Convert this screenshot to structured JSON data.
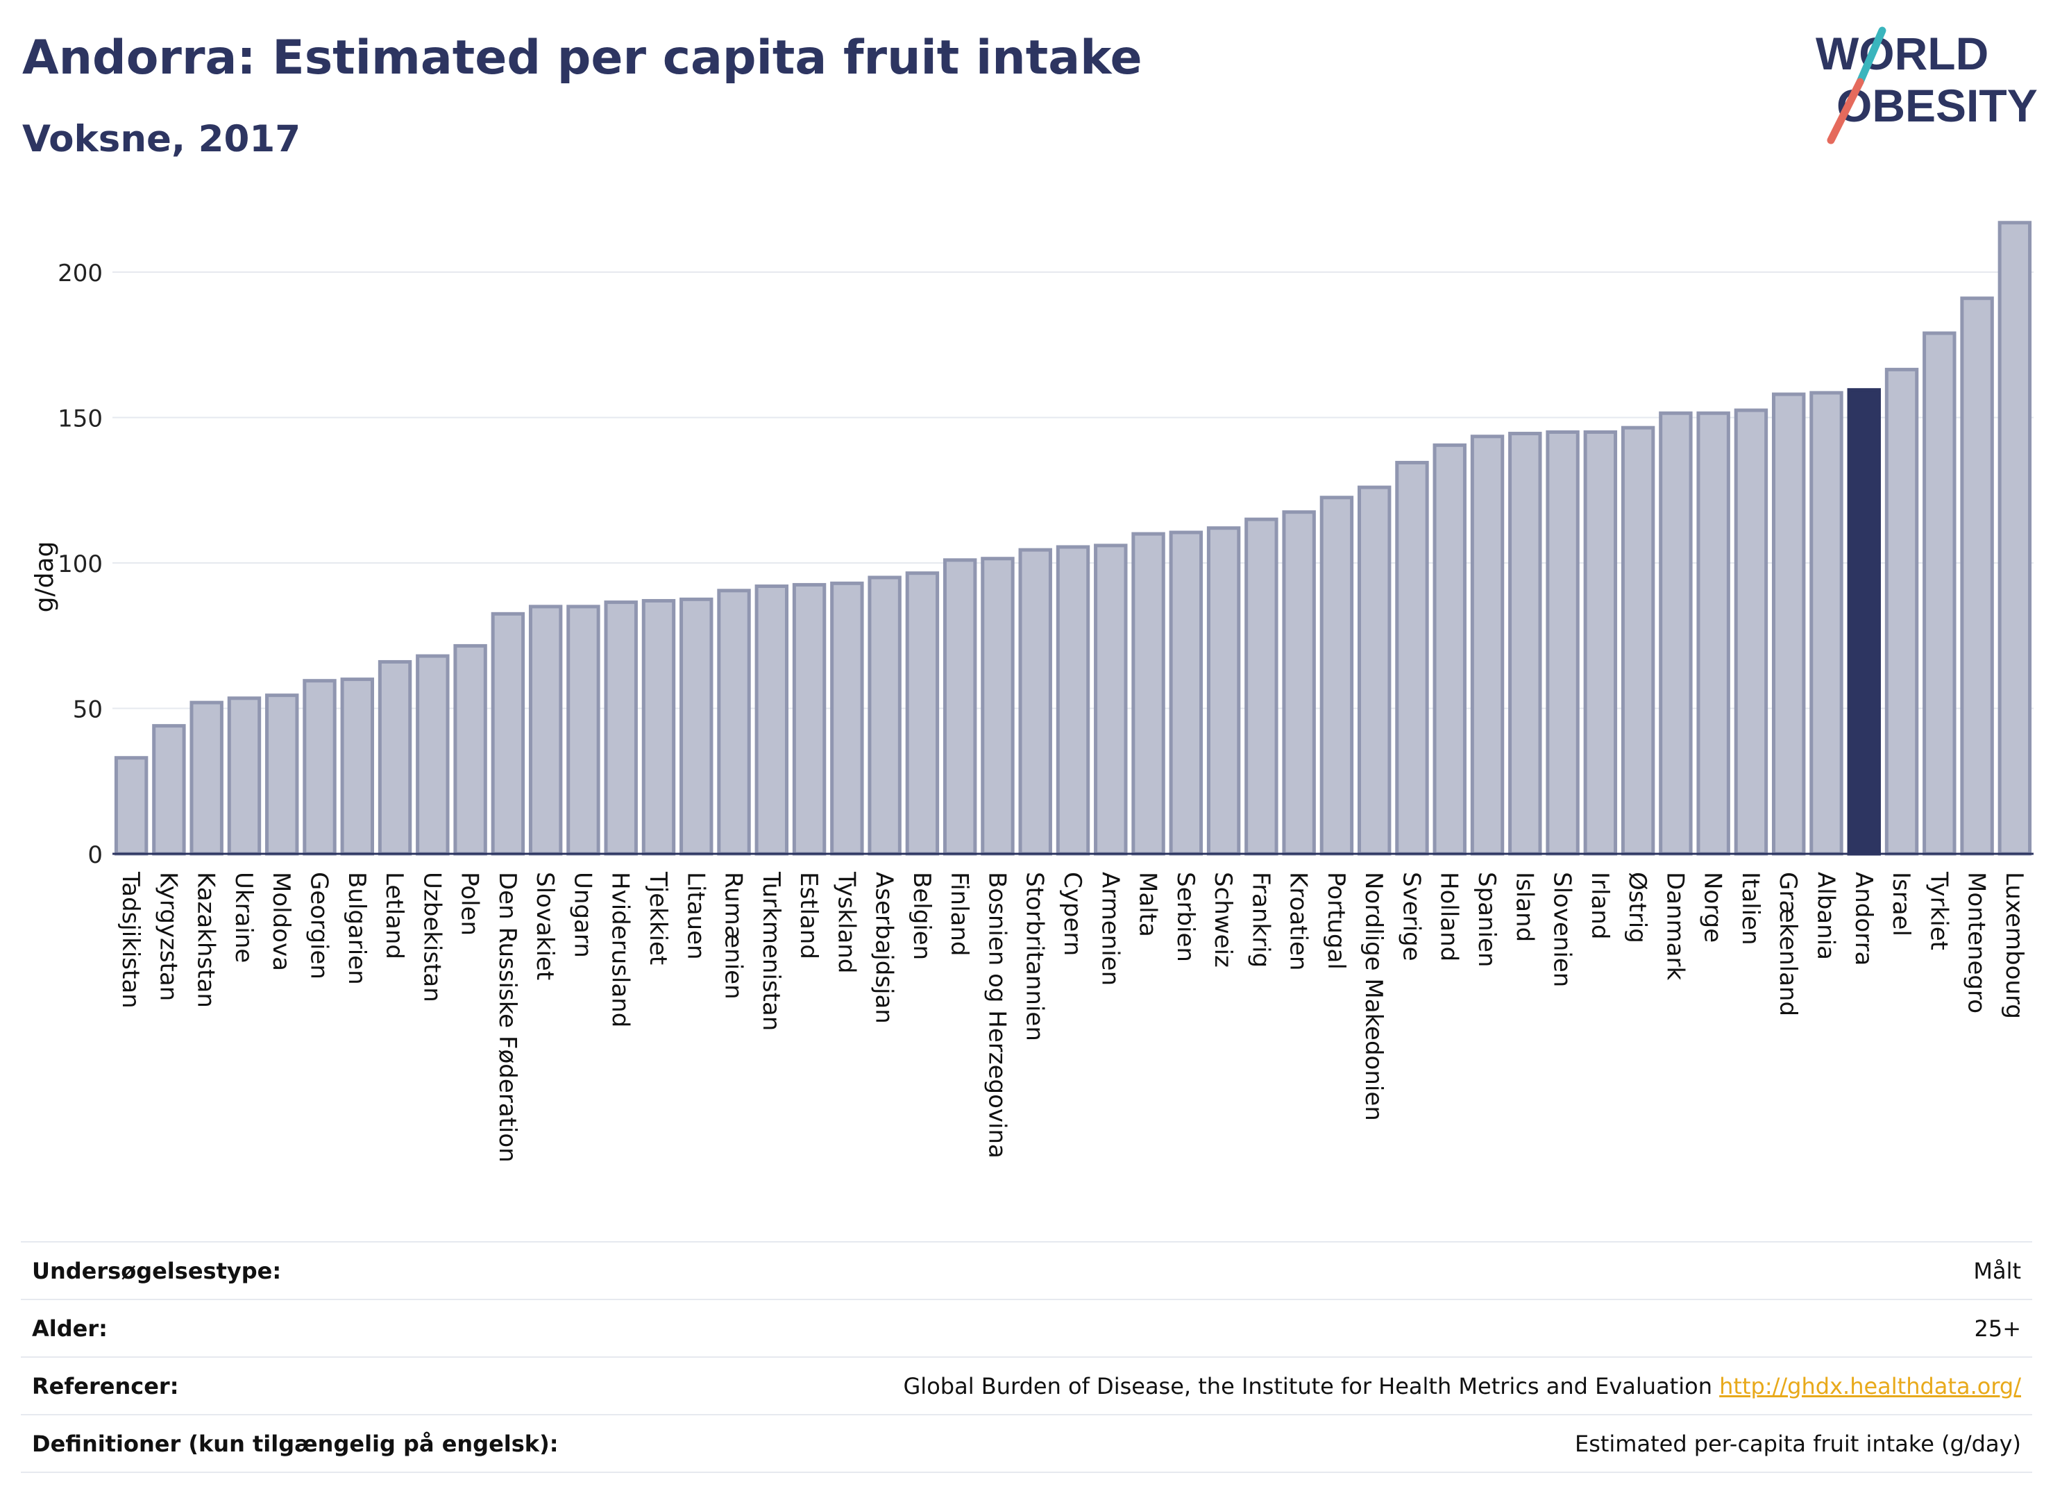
{
  "header": {
    "title": "Andorra: Estimated per capita fruit intake",
    "subtitle": "Voksne, 2017"
  },
  "logo": {
    "line1": "WORLD",
    "line2": "OBESITY"
  },
  "colors": {
    "bar": "#bcc0d0",
    "bar_border": "#9096b0",
    "highlight": "#2d3561",
    "logo_text": "#2d3561",
    "logo_teal": "#3ab5bd",
    "logo_red": "#e56a5c",
    "link": "#e8a91a"
  },
  "chart_data": {
    "type": "bar",
    "ylabel": "g/dag",
    "ylim": [
      0,
      220
    ],
    "yticks": [
      0,
      50,
      100,
      150,
      200
    ],
    "grid": true,
    "highlight": "Andorra",
    "categories": [
      "Tadsjikistan",
      "Kyrgyzstan",
      "Kazakhstan",
      "Ukraine",
      "Moldova",
      "Georgien",
      "Bulgarien",
      "Letland",
      "Uzbekistan",
      "Polen",
      "Den Russiske Føderation",
      "Slovakiet",
      "Ungarn",
      "Hviderusland",
      "Tjekkiet",
      "Litauen",
      "Rumænien",
      "Turkmenistan",
      "Estland",
      "Tyskland",
      "Aserbajdsjan",
      "Belgien",
      "Finland",
      "Bosnien og Herzegovina",
      "Storbritannien",
      "Cypern",
      "Armenien",
      "Malta",
      "Serbien",
      "Schweiz",
      "Frankrig",
      "Kroatien",
      "Portugal",
      "Nordlige Makedonien",
      "Sverige",
      "Holland",
      "Spanien",
      "Island",
      "Slovenien",
      "Irland",
      "Østrig",
      "Danmark",
      "Norge",
      "Italien",
      "Grækenland",
      "Albania",
      "Andorra",
      "Israel",
      "Tyrkiet",
      "Montenegro",
      "Luxembourg"
    ],
    "values": [
      33,
      44,
      52,
      53.5,
      54.5,
      59.5,
      60,
      66,
      68,
      71.5,
      82.5,
      85,
      85,
      86.5,
      87,
      87.5,
      90.5,
      92,
      92.5,
      93,
      95,
      96.5,
      101,
      101.5,
      104.5,
      105.5,
      106,
      110,
      110.5,
      112,
      115,
      117.5,
      122.5,
      126,
      134.5,
      140.5,
      143.5,
      144.5,
      145,
      145,
      146.5,
      151.5,
      151.5,
      152.5,
      158,
      158.5,
      159.5,
      166.5,
      179,
      191,
      217
    ]
  },
  "info": [
    {
      "label": "Undersøgelsestype:",
      "value": "Målt"
    },
    {
      "label": "Alder:",
      "value": "25+"
    },
    {
      "label": "Referencer:",
      "value": "Global Burden of Disease, the Institute for Health Metrics and Evaluation",
      "link": "http://ghdx.healthdata.org/"
    },
    {
      "label": "Definitioner (kun tilgængelig på engelsk):",
      "value": "Estimated per-capita fruit intake (g/day)"
    }
  ]
}
